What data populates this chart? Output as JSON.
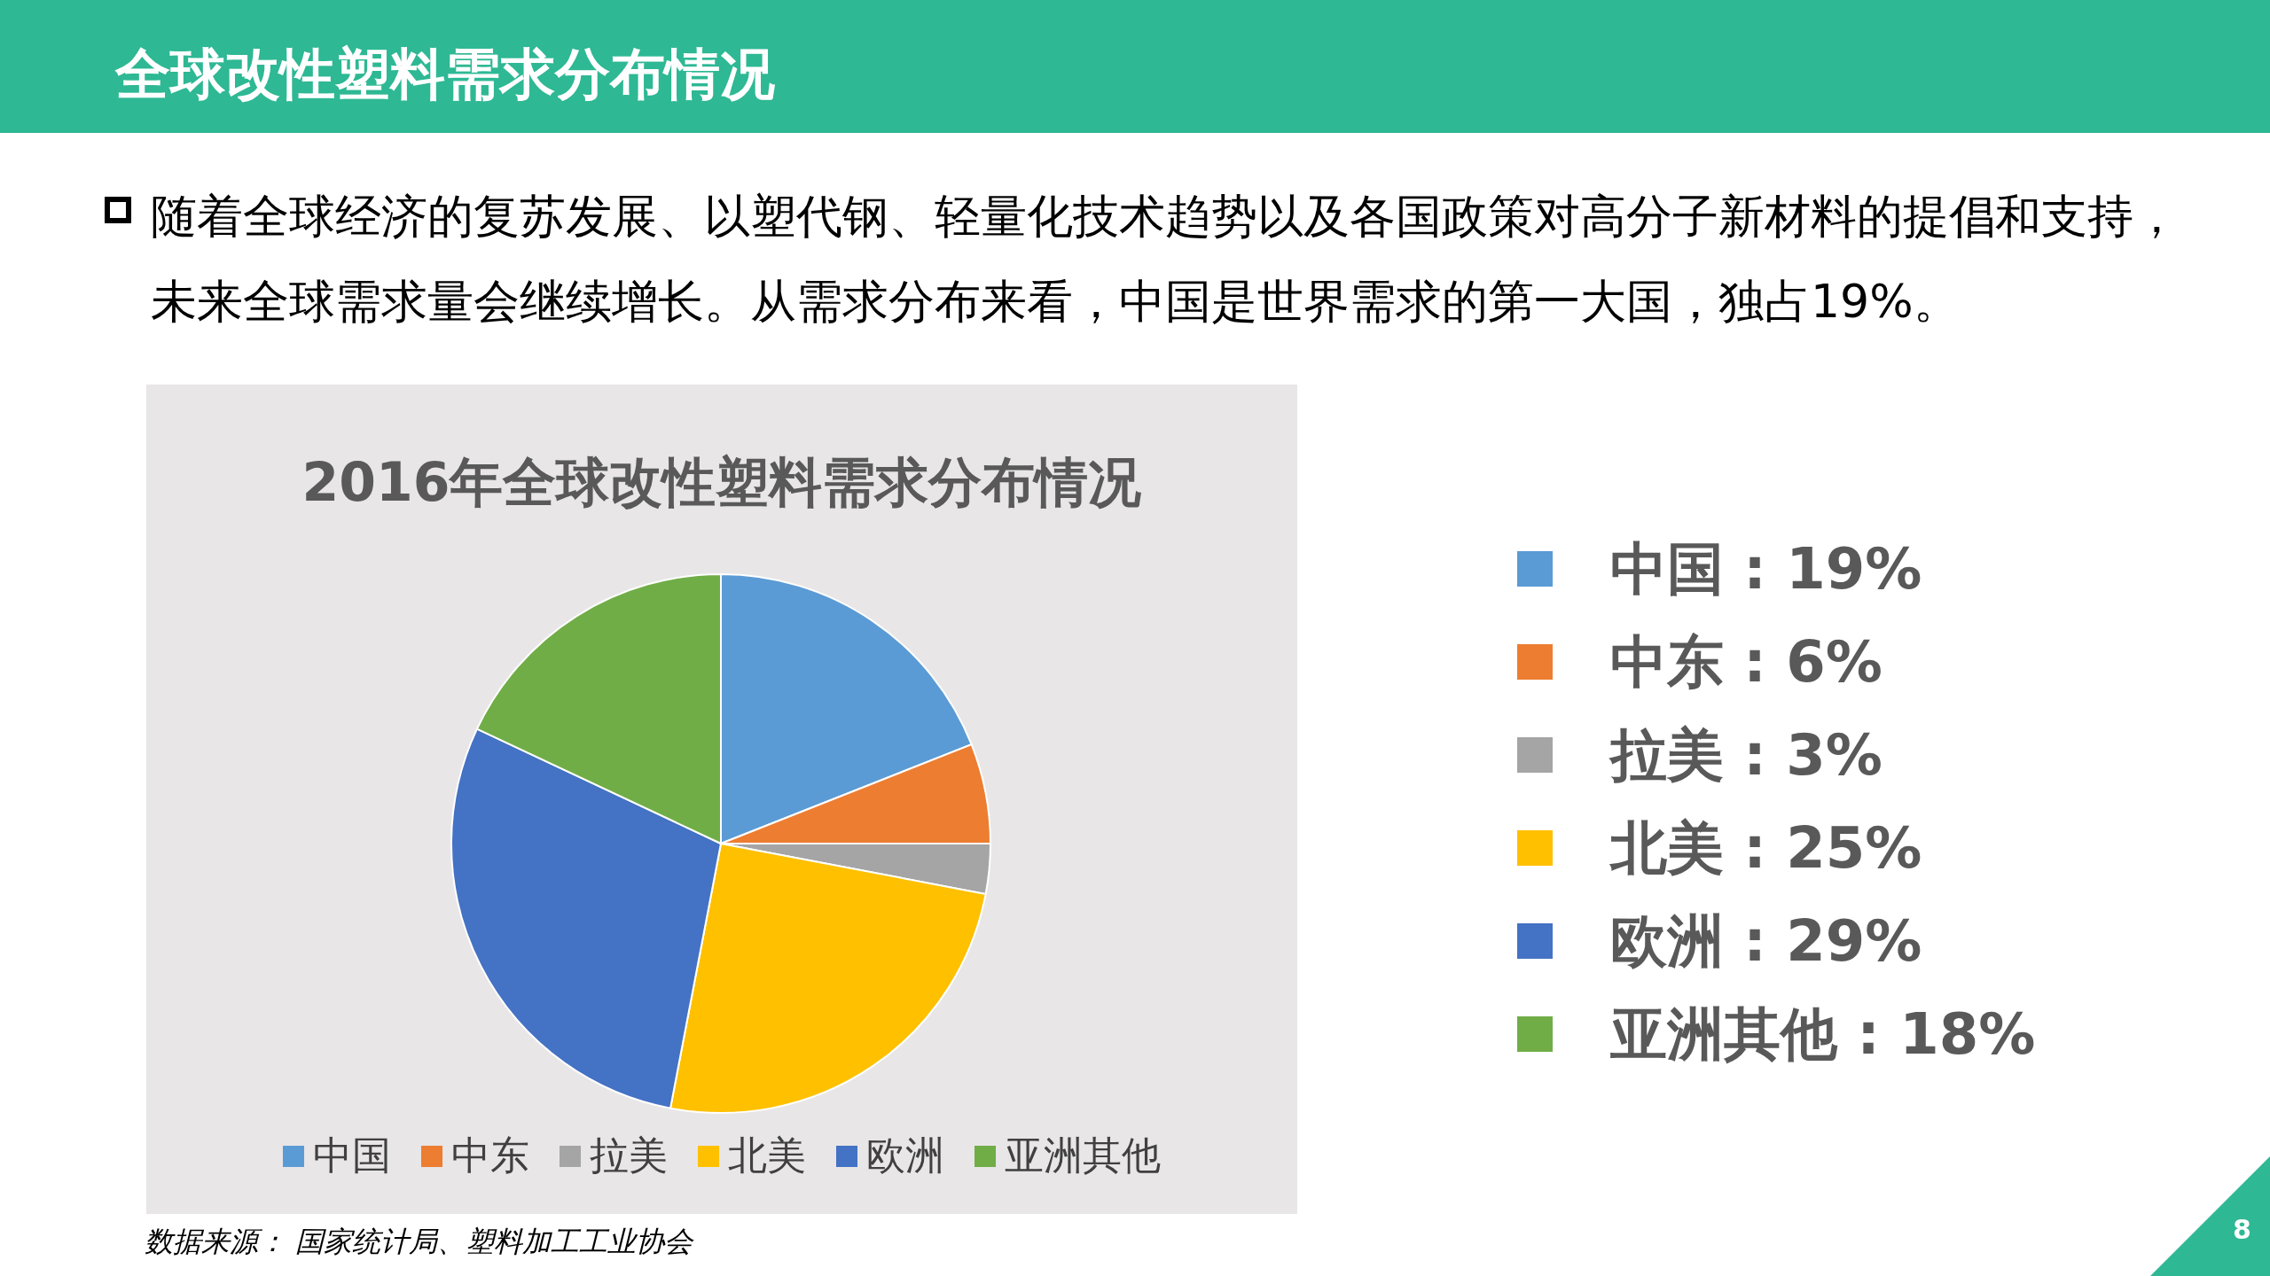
{
  "chart_data": {
    "type": "pie",
    "title": "全球改性塑料需求分布情况",
    "subtitle": "2016年全球改性塑料需求分布情况",
    "categories": [
      "中国",
      "中东",
      "拉美",
      "北美",
      "欧洲",
      "亚洲其他"
    ],
    "values": [
      19,
      6,
      3,
      25,
      29,
      18
    ],
    "colors": [
      "#5b9bd5",
      "#ed7d31",
      "#a5a5a5",
      "#ffc000",
      "#4472c4",
      "#70ad47"
    ],
    "legend": "bottom",
    "annotations": [
      "随着全球经济的复苏发展、以塑代钢、轻量化技术趋势以及各国政策对高分子新材料的提倡和支持，未来全球需求量会继续增长。从需求分布来看，中国是世界需求的第一大国，独占19%。",
      "数据来源： 国家统计局、塑料加工工业协会",
      "8",
      "中国 : 19%",
      "中东 : 6%",
      "拉美 : 3%",
      "北美 : 25%",
      "欧洲 : 29%",
      "亚洲其他 : 18%"
    ]
  }
}
